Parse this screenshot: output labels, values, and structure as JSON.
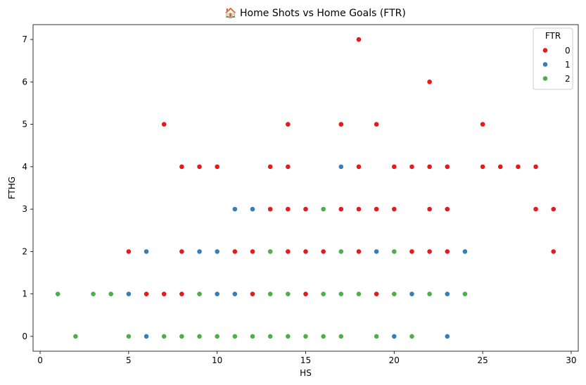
{
  "chart_data": {
    "type": "scatter",
    "title": "🏠 Home Shots vs Home Goals (FTR)",
    "xlabel": "HS",
    "ylabel": "FTHG",
    "xlim": [
      -0.4,
      30.4
    ],
    "ylim": [
      -0.35,
      7.35
    ],
    "xticks": [
      0,
      5,
      10,
      15,
      20,
      25,
      30
    ],
    "yticks": [
      0,
      1,
      2,
      3,
      4,
      5,
      6,
      7
    ],
    "grid": false,
    "legend": {
      "title": "FTR",
      "placement": "top-right"
    },
    "series": [
      {
        "name": "0",
        "color": "#e41a1c",
        "points": [
          [
            7,
            5
          ],
          [
            14,
            5
          ],
          [
            17,
            5
          ],
          [
            19,
            5
          ],
          [
            25,
            5
          ],
          [
            18,
            7
          ],
          [
            22,
            6
          ],
          [
            8,
            4
          ],
          [
            9,
            4
          ],
          [
            10,
            4
          ],
          [
            13,
            4
          ],
          [
            14,
            4
          ],
          [
            18,
            4
          ],
          [
            20,
            4
          ],
          [
            21,
            4
          ],
          [
            22,
            4
          ],
          [
            23,
            4
          ],
          [
            25,
            4
          ],
          [
            26,
            4
          ],
          [
            27,
            4
          ],
          [
            28,
            4
          ],
          [
            13,
            3
          ],
          [
            14,
            3
          ],
          [
            15,
            3
          ],
          [
            17,
            3
          ],
          [
            18,
            3
          ],
          [
            19,
            3
          ],
          [
            20,
            3
          ],
          [
            22,
            3
          ],
          [
            23,
            3
          ],
          [
            28,
            3
          ],
          [
            29,
            3
          ],
          [
            5,
            2
          ],
          [
            8,
            2
          ],
          [
            11,
            2
          ],
          [
            12,
            2
          ],
          [
            14,
            2
          ],
          [
            15,
            2
          ],
          [
            16,
            2
          ],
          [
            18,
            2
          ],
          [
            21,
            2
          ],
          [
            22,
            2
          ],
          [
            23,
            2
          ],
          [
            29,
            2
          ],
          [
            6,
            1
          ],
          [
            7,
            1
          ],
          [
            8,
            1
          ],
          [
            12,
            1
          ],
          [
            15,
            1
          ],
          [
            19,
            1
          ]
        ]
      },
      {
        "name": "1",
        "color": "#377eb8",
        "points": [
          [
            11,
            3
          ],
          [
            12,
            3
          ],
          [
            17,
            4
          ],
          [
            6,
            2
          ],
          [
            9,
            2
          ],
          [
            10,
            2
          ],
          [
            19,
            2
          ],
          [
            24,
            2
          ],
          [
            5,
            1
          ],
          [
            10,
            1
          ],
          [
            11,
            1
          ],
          [
            21,
            1
          ],
          [
            23,
            1
          ],
          [
            6,
            0
          ],
          [
            20,
            0
          ],
          [
            23,
            0
          ]
        ]
      },
      {
        "name": "2",
        "color": "#4daf4a",
        "points": [
          [
            16,
            3
          ],
          [
            13,
            2
          ],
          [
            17,
            2
          ],
          [
            20,
            2
          ],
          [
            1,
            1
          ],
          [
            3,
            1
          ],
          [
            4,
            1
          ],
          [
            9,
            1
          ],
          [
            13,
            1
          ],
          [
            14,
            1
          ],
          [
            16,
            1
          ],
          [
            17,
            1
          ],
          [
            18,
            1
          ],
          [
            20,
            1
          ],
          [
            22,
            1
          ],
          [
            24,
            1
          ],
          [
            2,
            0
          ],
          [
            5,
            0
          ],
          [
            7,
            0
          ],
          [
            8,
            0
          ],
          [
            9,
            0
          ],
          [
            10,
            0
          ],
          [
            11,
            0
          ],
          [
            12,
            0
          ],
          [
            13,
            0
          ],
          [
            14,
            0
          ],
          [
            15,
            0
          ],
          [
            16,
            0
          ],
          [
            17,
            0
          ],
          [
            19,
            0
          ],
          [
            21,
            0
          ]
        ]
      }
    ]
  }
}
